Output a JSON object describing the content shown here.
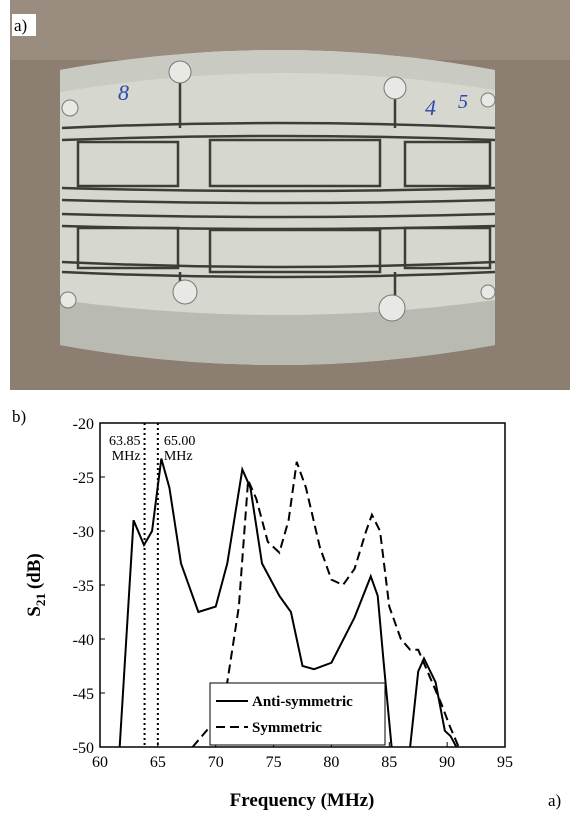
{
  "panel_labels": {
    "top": "a)",
    "chart": "b)",
    "corner": "a)"
  },
  "photo_marks": [
    "8",
    "4",
    "5"
  ],
  "chart_data": {
    "type": "line",
    "xlabel": "Frequency (MHz)",
    "ylabel": {
      "main": "S",
      "sub": "21",
      "unit": "(dB)"
    },
    "xlim": [
      60,
      95
    ],
    "xticks": [
      60,
      65,
      70,
      75,
      80,
      85,
      90,
      95
    ],
    "ylim": [
      -50,
      -20
    ],
    "yticks": [
      -50,
      -45,
      -40,
      -35,
      -30,
      -25,
      -20
    ],
    "legend": "lower center",
    "annotations": [
      {
        "x": 63.85,
        "lines": [
          "63.85",
          "MHz"
        ]
      },
      {
        "x": 65.0,
        "lines": [
          "65.00",
          "MHz"
        ]
      }
    ],
    "series": [
      {
        "name": "Anti-symmetric",
        "color": "#000000",
        "dash": "solid",
        "x": [
          61.7,
          62.9,
          63.8,
          64.5,
          65.3,
          66,
          67,
          68.5,
          70,
          71,
          72.3,
          73,
          74,
          75.5,
          76.5,
          77.5,
          78.5,
          80,
          82,
          83.4,
          84,
          84.5,
          85.2,
          86,
          86.8,
          87.5,
          88,
          89,
          89.8,
          90.3,
          90.8
        ],
        "values": [
          -50,
          -29,
          -31.3,
          -30,
          -23.3,
          -26,
          -33,
          -37.5,
          -37,
          -33,
          -24.3,
          -26,
          -33,
          -36,
          -37.5,
          -42.5,
          -42.8,
          -42.2,
          -38,
          -34.2,
          -36,
          -42,
          -50,
          null,
          -50,
          -43,
          -41.8,
          -44,
          -48.5,
          -49,
          -50
        ]
      },
      {
        "name": "Symmetric",
        "color": "#000000",
        "dash": "dashed",
        "x": [
          68,
          70,
          71,
          72,
          72.8,
          73.5,
          74.5,
          75.5,
          76.3,
          77,
          77.8,
          79,
          80,
          81,
          82,
          83,
          83.5,
          84.2,
          85,
          86,
          86.8,
          87.5,
          88.5,
          89.5,
          90.2,
          91
        ],
        "values": [
          -50,
          -47.5,
          -44,
          -37,
          -25.3,
          -27,
          -31,
          -32,
          -29,
          -23.6,
          -26,
          -31.5,
          -34.5,
          -35,
          -33.5,
          -30,
          -28.5,
          -30,
          -37,
          -40,
          -41,
          -41,
          -43.5,
          -46,
          -48,
          -50
        ]
      }
    ]
  }
}
